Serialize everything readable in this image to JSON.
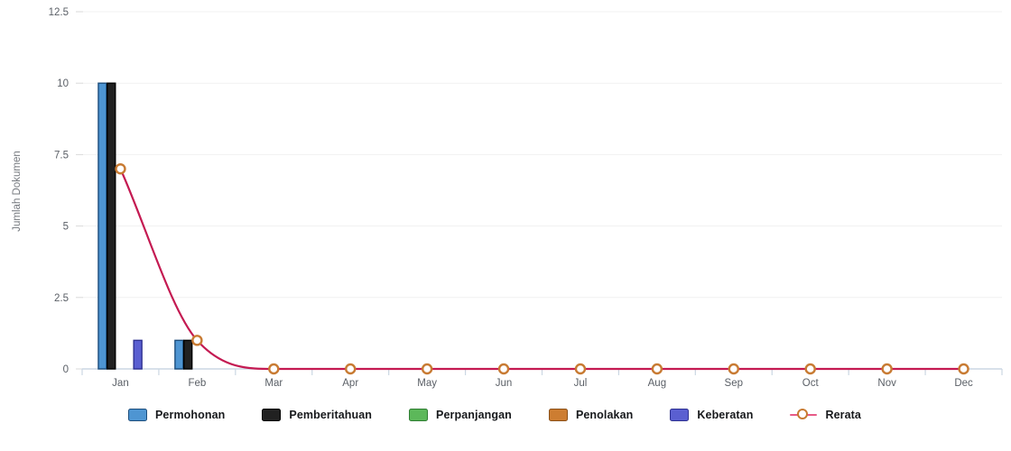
{
  "chart_data": {
    "type": "bar+line",
    "title": "",
    "xlabel": "",
    "ylabel": "Jumlah Dokumen",
    "ylim": [
      0,
      12.5
    ],
    "y_ticks": [
      0,
      2.5,
      5,
      7.5,
      10,
      12.5
    ],
    "grid": true,
    "legend_position": "bottom",
    "categories": [
      "Jan",
      "Feb",
      "Mar",
      "Apr",
      "May",
      "Jun",
      "Jul",
      "Aug",
      "Sep",
      "Oct",
      "Nov",
      "Dec"
    ],
    "series": [
      {
        "name": "Permohonan",
        "key": "permohonan",
        "type": "bar",
        "color": "#4e95d2",
        "border": "#1c4d7c",
        "values": [
          10,
          1,
          0,
          0,
          0,
          0,
          0,
          0,
          0,
          0,
          0,
          0
        ]
      },
      {
        "name": "Pemberitahuan",
        "key": "pemberitahuan",
        "type": "bar",
        "color": "#212121",
        "border": "#000000",
        "values": [
          10,
          1,
          0,
          0,
          0,
          0,
          0,
          0,
          0,
          0,
          0,
          0
        ]
      },
      {
        "name": "Perpanjangan",
        "key": "perpanjangan",
        "type": "bar",
        "color": "#5cb85a",
        "border": "#2e7d32",
        "values": [
          0,
          0,
          0,
          0,
          0,
          0,
          0,
          0,
          0,
          0,
          0,
          0
        ]
      },
      {
        "name": "Penolakan",
        "key": "penolakan",
        "type": "bar",
        "color": "#cd7d31",
        "border": "#8a4f17",
        "values": [
          0,
          0,
          0,
          0,
          0,
          0,
          0,
          0,
          0,
          0,
          0,
          0
        ]
      },
      {
        "name": "Keberatan",
        "key": "keberatan",
        "type": "bar",
        "color": "#5a5fd1",
        "border": "#2e3191",
        "values": [
          1,
          0,
          0,
          0,
          0,
          0,
          0,
          0,
          0,
          0,
          0,
          0
        ]
      },
      {
        "name": "Rerata",
        "key": "rerata",
        "type": "line",
        "color": "#c41a52",
        "legend_line_color": "#e75a87",
        "marker_color": "#c87b33",
        "marker_fill": "#ffffff",
        "values": [
          7,
          1,
          0,
          0,
          0,
          0,
          0,
          0,
          0,
          0,
          0,
          0
        ]
      }
    ],
    "axis_colors": {
      "gridline": "#f1f1f1",
      "baseline": "#cbd7e3",
      "y_tick_dash": "#dadada",
      "tick_label": "#5a5f66",
      "axis_title": "#74787e"
    }
  }
}
